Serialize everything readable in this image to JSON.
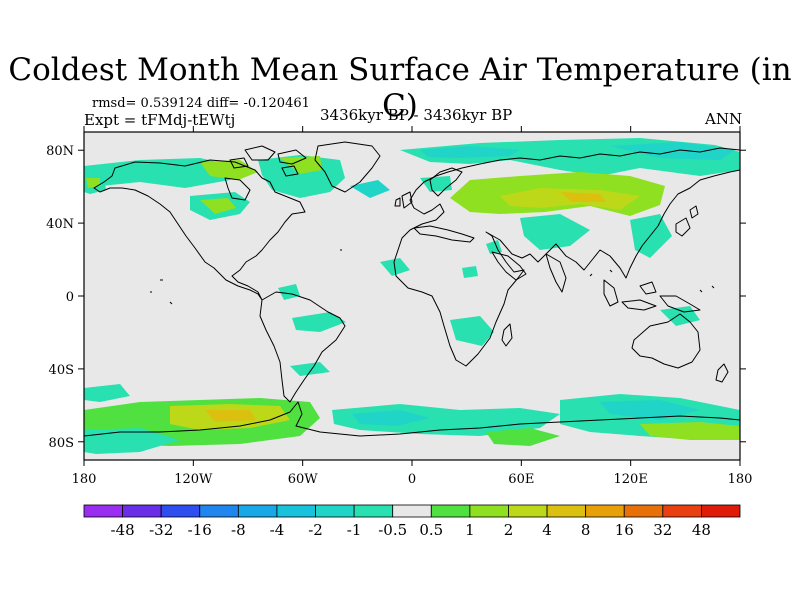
{
  "title": "Coldest Month Mean Surface Air Temperature (in C)",
  "stats": "rmsd= 0.539124 diff= -0.120461",
  "experiment": "Expt = tFMdj-tEWtj",
  "period": "3436kyr BP - 3436kyr BP",
  "season": "ANN",
  "map": {
    "background_color": "#e8e8e8",
    "lat_ticks": [
      {
        "value": 80,
        "label": "80N"
      },
      {
        "value": 40,
        "label": "40N"
      },
      {
        "value": 0,
        "label": "0"
      },
      {
        "value": -40,
        "label": "40S"
      },
      {
        "value": -80,
        "label": "80S"
      }
    ],
    "lon_ticks": [
      {
        "value": -180,
        "label": "180"
      },
      {
        "value": -120,
        "label": "120W"
      },
      {
        "value": -60,
        "label": "60W"
      },
      {
        "value": 0,
        "label": "0"
      },
      {
        "value": 60,
        "label": "60E"
      },
      {
        "value": 120,
        "label": "120E"
      },
      {
        "value": 180,
        "label": "180"
      }
    ]
  },
  "colorbar": {
    "levels": [
      "-48",
      "-32",
      "-16",
      "-8",
      "-4",
      "-2",
      "-1",
      "-0.5",
      "0.5",
      "1",
      "2",
      "4",
      "8",
      "16",
      "32",
      "48"
    ],
    "colors": [
      "#9a2ef0",
      "#6a2ee8",
      "#2e4ef0",
      "#1e86ee",
      "#18a8e8",
      "#18c2dc",
      "#20d4c8",
      "#28e0b0",
      "#e8e8e8",
      "#50e040",
      "#8ee020",
      "#bcd818",
      "#dcc010",
      "#e8a008",
      "#e87008",
      "#e84010",
      "#e01c08"
    ]
  }
}
